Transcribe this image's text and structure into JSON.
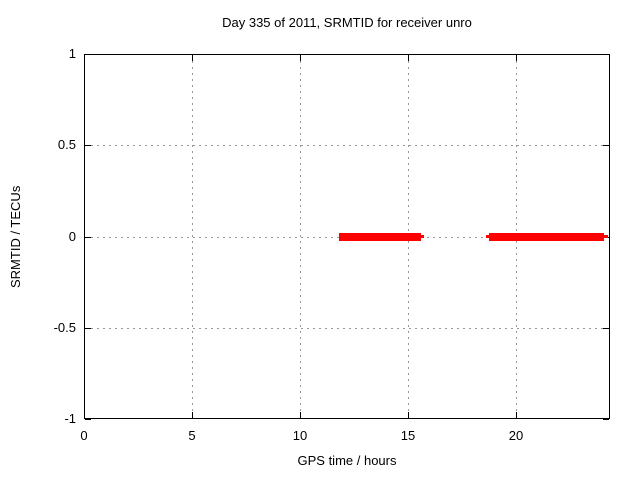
{
  "page": {
    "background": "#ffffff"
  },
  "chart_data": {
    "type": "line",
    "title": "Day 335 of 2011, SRMTID for receiver unro",
    "xlabel": "GPS time / hours",
    "ylabel": "SRMTID / TECUs",
    "xlim": [
      0,
      24.35
    ],
    "ylim": [
      -1,
      1
    ],
    "xticks": [
      {
        "value": 0,
        "label": "0"
      },
      {
        "value": 5,
        "label": "5"
      },
      {
        "value": 10,
        "label": "10"
      },
      {
        "value": 15,
        "label": "15"
      },
      {
        "value": 20,
        "label": "20"
      }
    ],
    "yticks": [
      {
        "value": 1,
        "label": "1"
      },
      {
        "value": 0.5,
        "label": "0.5"
      },
      {
        "value": 0,
        "label": "0"
      },
      {
        "value": -0.5,
        "label": "-0.5"
      },
      {
        "value": -1,
        "label": "-1"
      }
    ],
    "grid": true,
    "legend_position": "none",
    "colors": {
      "series": "#ff0000",
      "grid": "#999999",
      "axis": "#000000",
      "text": "#000000",
      "background": "#ffffff"
    },
    "series": [
      {
        "name": "SRMTID",
        "color": "#ff0000",
        "style": "thick horizontal segments at y = 0 (values ~0 TECUs)",
        "y": 0,
        "segments": [
          {
            "start_hour": 11.8,
            "end_hour": 15.72,
            "core_start_hour": 11.8,
            "core_end_hour": 15.58
          },
          {
            "start_hour": 18.61,
            "end_hour": 24.24,
            "core_start_hour": 18.73,
            "core_end_hour": 24.07
          }
        ]
      }
    ]
  }
}
